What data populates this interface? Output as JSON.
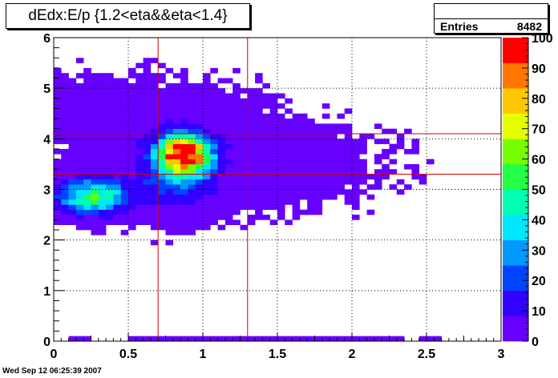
{
  "header": {
    "title": "dEdx:E/p {1.2<eta&&eta<1.4}"
  },
  "stats": {
    "entries_label": "Entries",
    "entries_value": "8482"
  },
  "footer": {
    "timestamp": "Wed Sep 12 06:25:39 2007"
  },
  "chart_data": {
    "type": "heatmap",
    "title": "dEdx:E/p {1.2<eta&&eta<1.4}",
    "xlabel": "",
    "ylabel": "",
    "xlim": [
      0,
      3
    ],
    "ylim": [
      0,
      6
    ],
    "x_ticks": [
      "0",
      "0.5",
      "1",
      "1.5",
      "2",
      "2.5",
      "3"
    ],
    "y_ticks": [
      "0",
      "1",
      "2",
      "3",
      "4",
      "5",
      "6"
    ],
    "color_scale": {
      "min": 0,
      "max": 100,
      "ticks": [
        "0",
        "10",
        "20",
        "30",
        "40",
        "50",
        "60",
        "70",
        "80",
        "90",
        "100"
      ],
      "colors": [
        "#6600ff",
        "#3300ff",
        "#0044ff",
        "#0099ff",
        "#00e6ff",
        "#00ffb3",
        "#22ff44",
        "#77ff00",
        "#e6ff00",
        "#ffc800",
        "#ff7700",
        "#ff0000"
      ]
    },
    "grid": true,
    "grid_style": "dotted",
    "cut_lines": {
      "x": [
        0.7,
        1.3
      ],
      "y": [
        3.3,
        4.1
      ],
      "color": "#cc0000"
    },
    "bin_size": {
      "x": 0.05,
      "y": 0.1
    },
    "blobs": [
      {
        "x": 0.26,
        "y": 2.86,
        "sx": 0.15,
        "sy": 0.22,
        "amp": 55
      },
      {
        "x": 0.88,
        "y": 3.7,
        "sx": 0.11,
        "sy": 0.26,
        "amp": 96
      },
      {
        "x": 0.82,
        "y": 3.3,
        "sx": 0.16,
        "sy": 0.45,
        "amp": 22
      },
      {
        "x": 1.2,
        "y": 3.5,
        "sx": 0.55,
        "sy": 0.55,
        "amp": 5
      },
      {
        "x": 0.5,
        "y": 4.5,
        "sx": 0.5,
        "sy": 0.5,
        "amp": 3
      }
    ],
    "baseline_row": {
      "y": 0.05,
      "x_range": [
        0.1,
        2.55
      ],
      "level": 1
    }
  }
}
